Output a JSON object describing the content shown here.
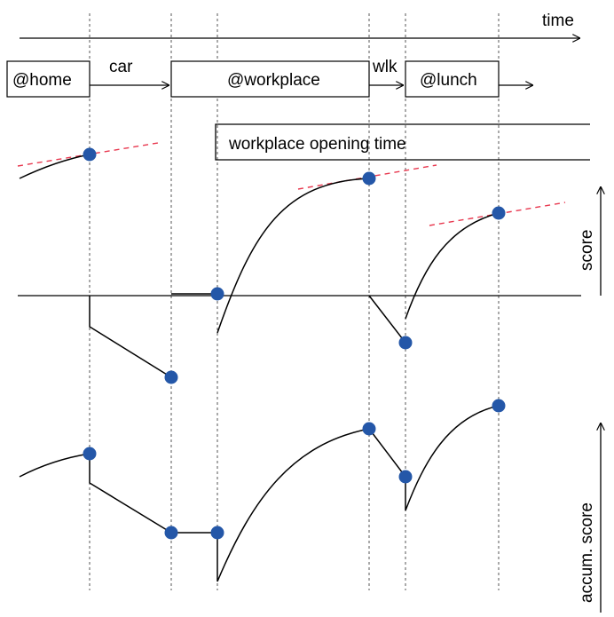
{
  "labels": {
    "time_axis": "time",
    "score_axis": "score",
    "accum_axis": "accum. score",
    "opening_time": "workplace opening time"
  },
  "activities": [
    {
      "id": "home",
      "label": "@home"
    },
    {
      "id": "workplace",
      "label": "@workplace"
    },
    {
      "id": "lunch",
      "label": "@lunch"
    }
  ],
  "travel": [
    {
      "id": "car",
      "label": "car"
    },
    {
      "id": "walk",
      "label": "wlk"
    }
  ],
  "colors": {
    "marker": "#2457a8",
    "tangent": "#e8384f",
    "line": "#000000",
    "guide": "#555555"
  }
}
